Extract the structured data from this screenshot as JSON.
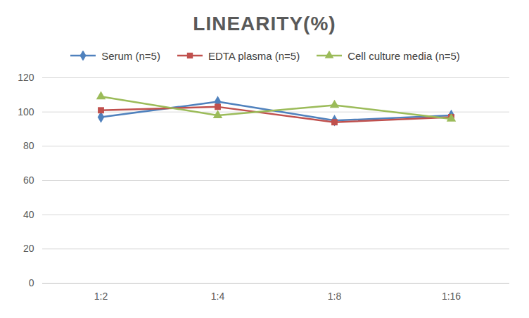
{
  "chart_data": {
    "type": "line",
    "title": "LINEARITY(%)",
    "categories": [
      "1:2",
      "1:4",
      "1:8",
      "1:16"
    ],
    "series": [
      {
        "name": "Serum (n=5)",
        "color": "#4f81bd",
        "marker": "diamond",
        "values": [
          97,
          106,
          95,
          98
        ]
      },
      {
        "name": "EDTA plasma (n=5)",
        "color": "#c0504d",
        "marker": "square",
        "values": [
          101,
          103,
          94,
          97
        ]
      },
      {
        "name": "Cell culture media (n=5)",
        "color": "#9bbb59",
        "marker": "triangle",
        "values": [
          109,
          98,
          104,
          96
        ]
      }
    ],
    "ylim": [
      0,
      120
    ],
    "yticks": [
      0,
      20,
      40,
      60,
      80,
      100,
      120
    ],
    "grid": true,
    "legend": "top"
  }
}
